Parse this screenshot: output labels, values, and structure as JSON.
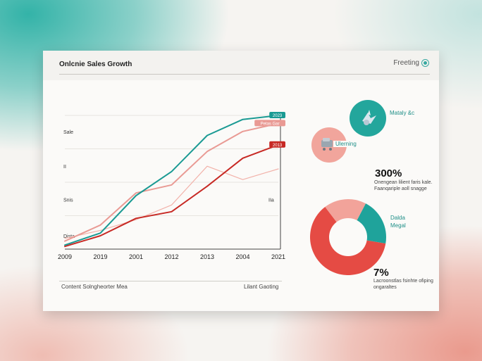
{
  "header": {
    "title": "Onlcnie Sales Growth",
    "link_label": "Freeting"
  },
  "footer": {
    "left": "Content Solngheorter Mea",
    "right": "Lilant Gaoting"
  },
  "chart_data": {
    "type": "line",
    "x": [
      "2009",
      "2019",
      "2001",
      "2012",
      "2013",
      "2004",
      "2021"
    ],
    "y_tick_labels": [
      "Sale",
      "II",
      "Snis",
      "Dista"
    ],
    "right_tick_labels": [
      "IIa"
    ],
    "ylim": [
      0,
      100
    ],
    "series": [
      {
        "name": "",
        "color": "#1a9a93",
        "values": [
          3,
          12,
          40,
          58,
          85,
          97,
          100
        ],
        "end_label": "2023"
      },
      {
        "name": "",
        "color": "#e99a94",
        "values": [
          6,
          18,
          42,
          48,
          73,
          88,
          94
        ],
        "end_label": "Petas Gar"
      },
      {
        "name": "",
        "color": "#c72924",
        "values": [
          2,
          10,
          23,
          28,
          47,
          68,
          78
        ],
        "end_label": "2013"
      },
      {
        "name": "",
        "color": "#f2b2aa",
        "values": [
          8,
          14,
          22,
          33,
          62,
          52,
          60
        ]
      }
    ]
  },
  "side": {
    "teal_label": "Mataly &c",
    "pink_label": "Ulerning",
    "stat1": "300%",
    "stat1_note": "Onengean lilient faris kale. Faanqariple aoll snagge",
    "donut_label_line1": "Dalda",
    "donut_label_line2": "Megal",
    "donut_values": [
      {
        "value": 62,
        "color": "#e54b44"
      },
      {
        "value": 20,
        "color": "#1fa39b"
      },
      {
        "value": 18,
        "color": "#f2a39a"
      }
    ],
    "stat2": "7%",
    "stat2_note": "Lacroonstlas fsinhte ofiping ongaraltes"
  },
  "colors": {
    "teal": "#2aa9a0",
    "pink": "#f0a8a0",
    "red": "#e54b44"
  }
}
